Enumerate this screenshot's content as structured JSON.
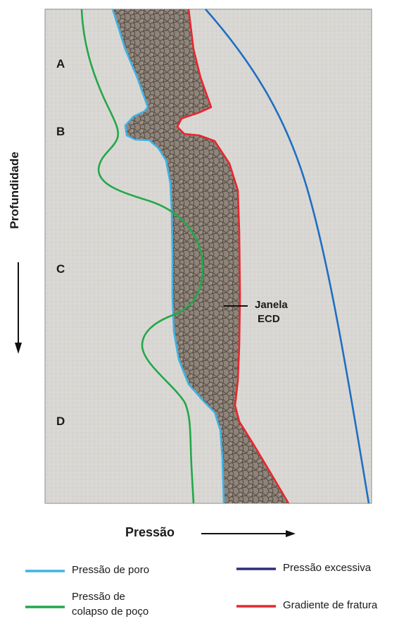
{
  "zones": {
    "a": "A",
    "b": "B",
    "c": "C",
    "d": "D"
  },
  "axes": {
    "y_label": "Profundidade",
    "x_label": "Pressão"
  },
  "window_label": {
    "line1": "Janela",
    "line2": "ECD"
  },
  "legend": [
    {
      "label": "Pressão de poro",
      "color": "#3fb3e6"
    },
    {
      "label": "Pressão excessiva",
      "color": "#2b2f7a"
    },
    {
      "label": "Pressão de colapso de poço",
      "line1": "Pressão de",
      "line2": "colapso de poço",
      "color": "#22a84a"
    },
    {
      "label": "Gradiente de fratura",
      "color": "#e8272e"
    }
  ],
  "colors": {
    "pore": "#3fb3e6",
    "collapse": "#22a84a",
    "fracture": "#e8272e",
    "outer_blue": "#1f6fc2",
    "window_fill": "#8a7f74",
    "background": "#d8d6d2"
  }
}
